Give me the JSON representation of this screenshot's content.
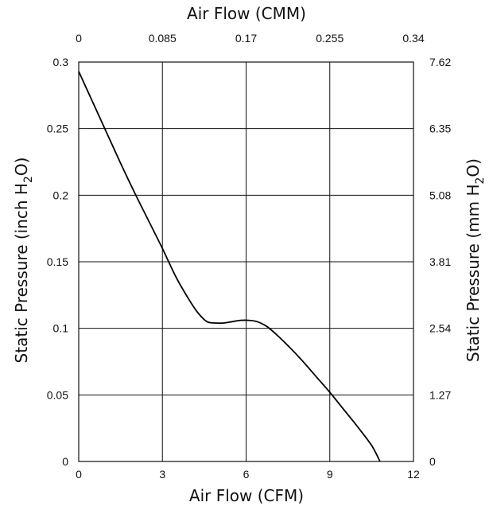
{
  "chart_data": {
    "type": "line",
    "top_xlabel": "Air Flow (CMM)",
    "xlabel": "Air Flow (CFM)",
    "ylabel_left": {
      "pre": "Static Pressure (inch H",
      "sub": "2",
      "post": "O)"
    },
    "ylabel_right": {
      "pre": "Static Pressure (mm H",
      "sub": "2",
      "post": "O)"
    },
    "xlim": [
      0,
      12
    ],
    "ylim": [
      0,
      0.3
    ],
    "x_ticks": [
      "0",
      "3",
      "6",
      "9",
      "12"
    ],
    "y_ticks": [
      "0",
      "0.05",
      "0.1",
      "0.15",
      "0.2",
      "0.25",
      "0.3"
    ],
    "top_ticks": [
      "0",
      "0.085",
      "0.17",
      "0.255",
      "0.34"
    ],
    "right_ticks": [
      "0",
      "1.27",
      "2.54",
      "3.81",
      "5.08",
      "6.35",
      "7.62"
    ],
    "grid": true,
    "line_color": "#000000",
    "series": [
      {
        "x": [
          0,
          0.5,
          1,
          1.5,
          2,
          2.5,
          3,
          3.5,
          4,
          4.3,
          4.6,
          4.9,
          5.2,
          5.5,
          5.8,
          6.1,
          6.4,
          6.7,
          7,
          7.5,
          8,
          8.5,
          9,
          9.5,
          10,
          10.5,
          10.8
        ],
        "y": [
          0.293,
          0.27,
          0.247,
          0.224,
          0.202,
          0.181,
          0.16,
          0.138,
          0.12,
          0.111,
          0.105,
          0.104,
          0.104,
          0.105,
          0.106,
          0.106,
          0.105,
          0.102,
          0.097,
          0.087,
          0.076,
          0.064,
          0.052,
          0.039,
          0.026,
          0.012,
          0.0
        ]
      }
    ]
  }
}
